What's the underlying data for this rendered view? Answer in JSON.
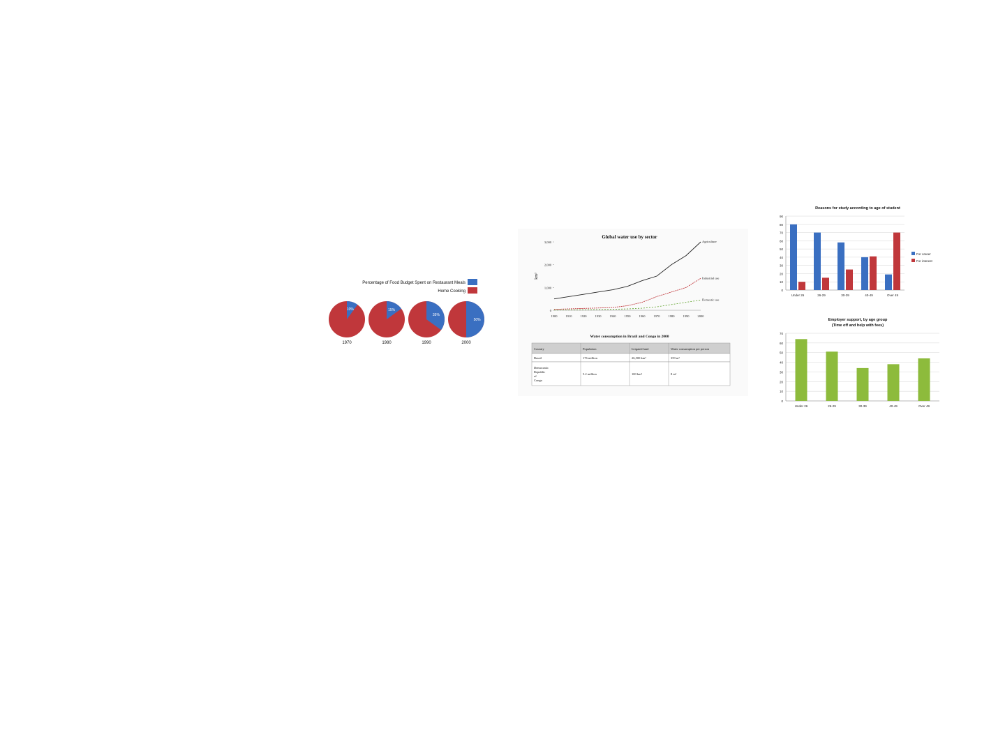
{
  "charts": {
    "pies": {
      "type": "pie",
      "legend": [
        {
          "label": "Percentage of Food Budget Spent on Restaurant Meals",
          "color": "#3a6fc1"
        },
        {
          "label": "Home Cooking",
          "color": "#c0373b"
        }
      ],
      "items": [
        {
          "year": "1970",
          "restaurant": 10,
          "label": "10%"
        },
        {
          "year": "1980",
          "restaurant": 15,
          "label": "15%"
        },
        {
          "year": "1990",
          "restaurant": 35,
          "label": "35%"
        },
        {
          "year": "2000",
          "restaurant": 50,
          "label": "50%"
        }
      ]
    },
    "water": {
      "type": "line",
      "title": "Global water use by sector",
      "ylabel": "km³",
      "x": [
        1900,
        1910,
        1920,
        1930,
        1940,
        1950,
        1960,
        1970,
        1980,
        1990,
        2000
      ],
      "ylim": [
        0,
        3000
      ],
      "yticks": [
        0,
        1000,
        2000,
        3000
      ],
      "yticklabels": [
        "0",
        "1,000",
        "2,000",
        "3,000"
      ],
      "series": [
        {
          "name": "Agriculture",
          "color": "#222222",
          "values": [
            500,
            600,
            700,
            800,
            900,
            1050,
            1300,
            1500,
            2000,
            2400,
            3000
          ]
        },
        {
          "name": "Industrial use",
          "color": "#c0373b",
          "values": [
            40,
            60,
            80,
            100,
            120,
            200,
            350,
            600,
            800,
            1000,
            1400
          ]
        },
        {
          "name": "Domestic use",
          "color": "#6aa83a",
          "values": [
            10,
            15,
            20,
            30,
            40,
            60,
            90,
            150,
            250,
            350,
            450
          ]
        }
      ]
    },
    "water_table": {
      "type": "table",
      "title": "Water consumption in Brazil and Congo in 2000",
      "columns": [
        "Country",
        "Population",
        "Irrigated land",
        "Water consumption per person"
      ],
      "rows": [
        [
          "Brazil",
          "176 million",
          "26,500 km²",
          "359 m³"
        ],
        [
          "Democratic Republic of Congo",
          "5.2 million",
          "100 km²",
          "8 m³"
        ]
      ]
    },
    "reasons": {
      "type": "bar",
      "title": "Reasons for study according to age of student",
      "categories": [
        "Under 26",
        "26-29",
        "30-39",
        "40-49",
        "Over 49"
      ],
      "ylim": [
        0,
        90
      ],
      "yticks": [
        0,
        10,
        20,
        30,
        40,
        50,
        60,
        70,
        80,
        90
      ],
      "series": [
        {
          "name": "For career",
          "color": "#3a6fc1",
          "values": [
            80,
            70,
            58,
            40,
            19
          ]
        },
        {
          "name": "For interest",
          "color": "#c0373b",
          "values": [
            10,
            15,
            25,
            41,
            70
          ]
        }
      ]
    },
    "support": {
      "type": "bar",
      "title": "Employer support, by age group",
      "subtitle": "(Time off and help with fees)",
      "categories": [
        "Under 26",
        "26-29",
        "30-39",
        "40-49",
        "Over 49"
      ],
      "ylim": [
        0,
        70
      ],
      "yticks": [
        0,
        10,
        20,
        30,
        40,
        50,
        60,
        70
      ],
      "series": [
        {
          "color": "#8dbb3c",
          "values": [
            64,
            51,
            34,
            38,
            44
          ]
        }
      ]
    }
  }
}
